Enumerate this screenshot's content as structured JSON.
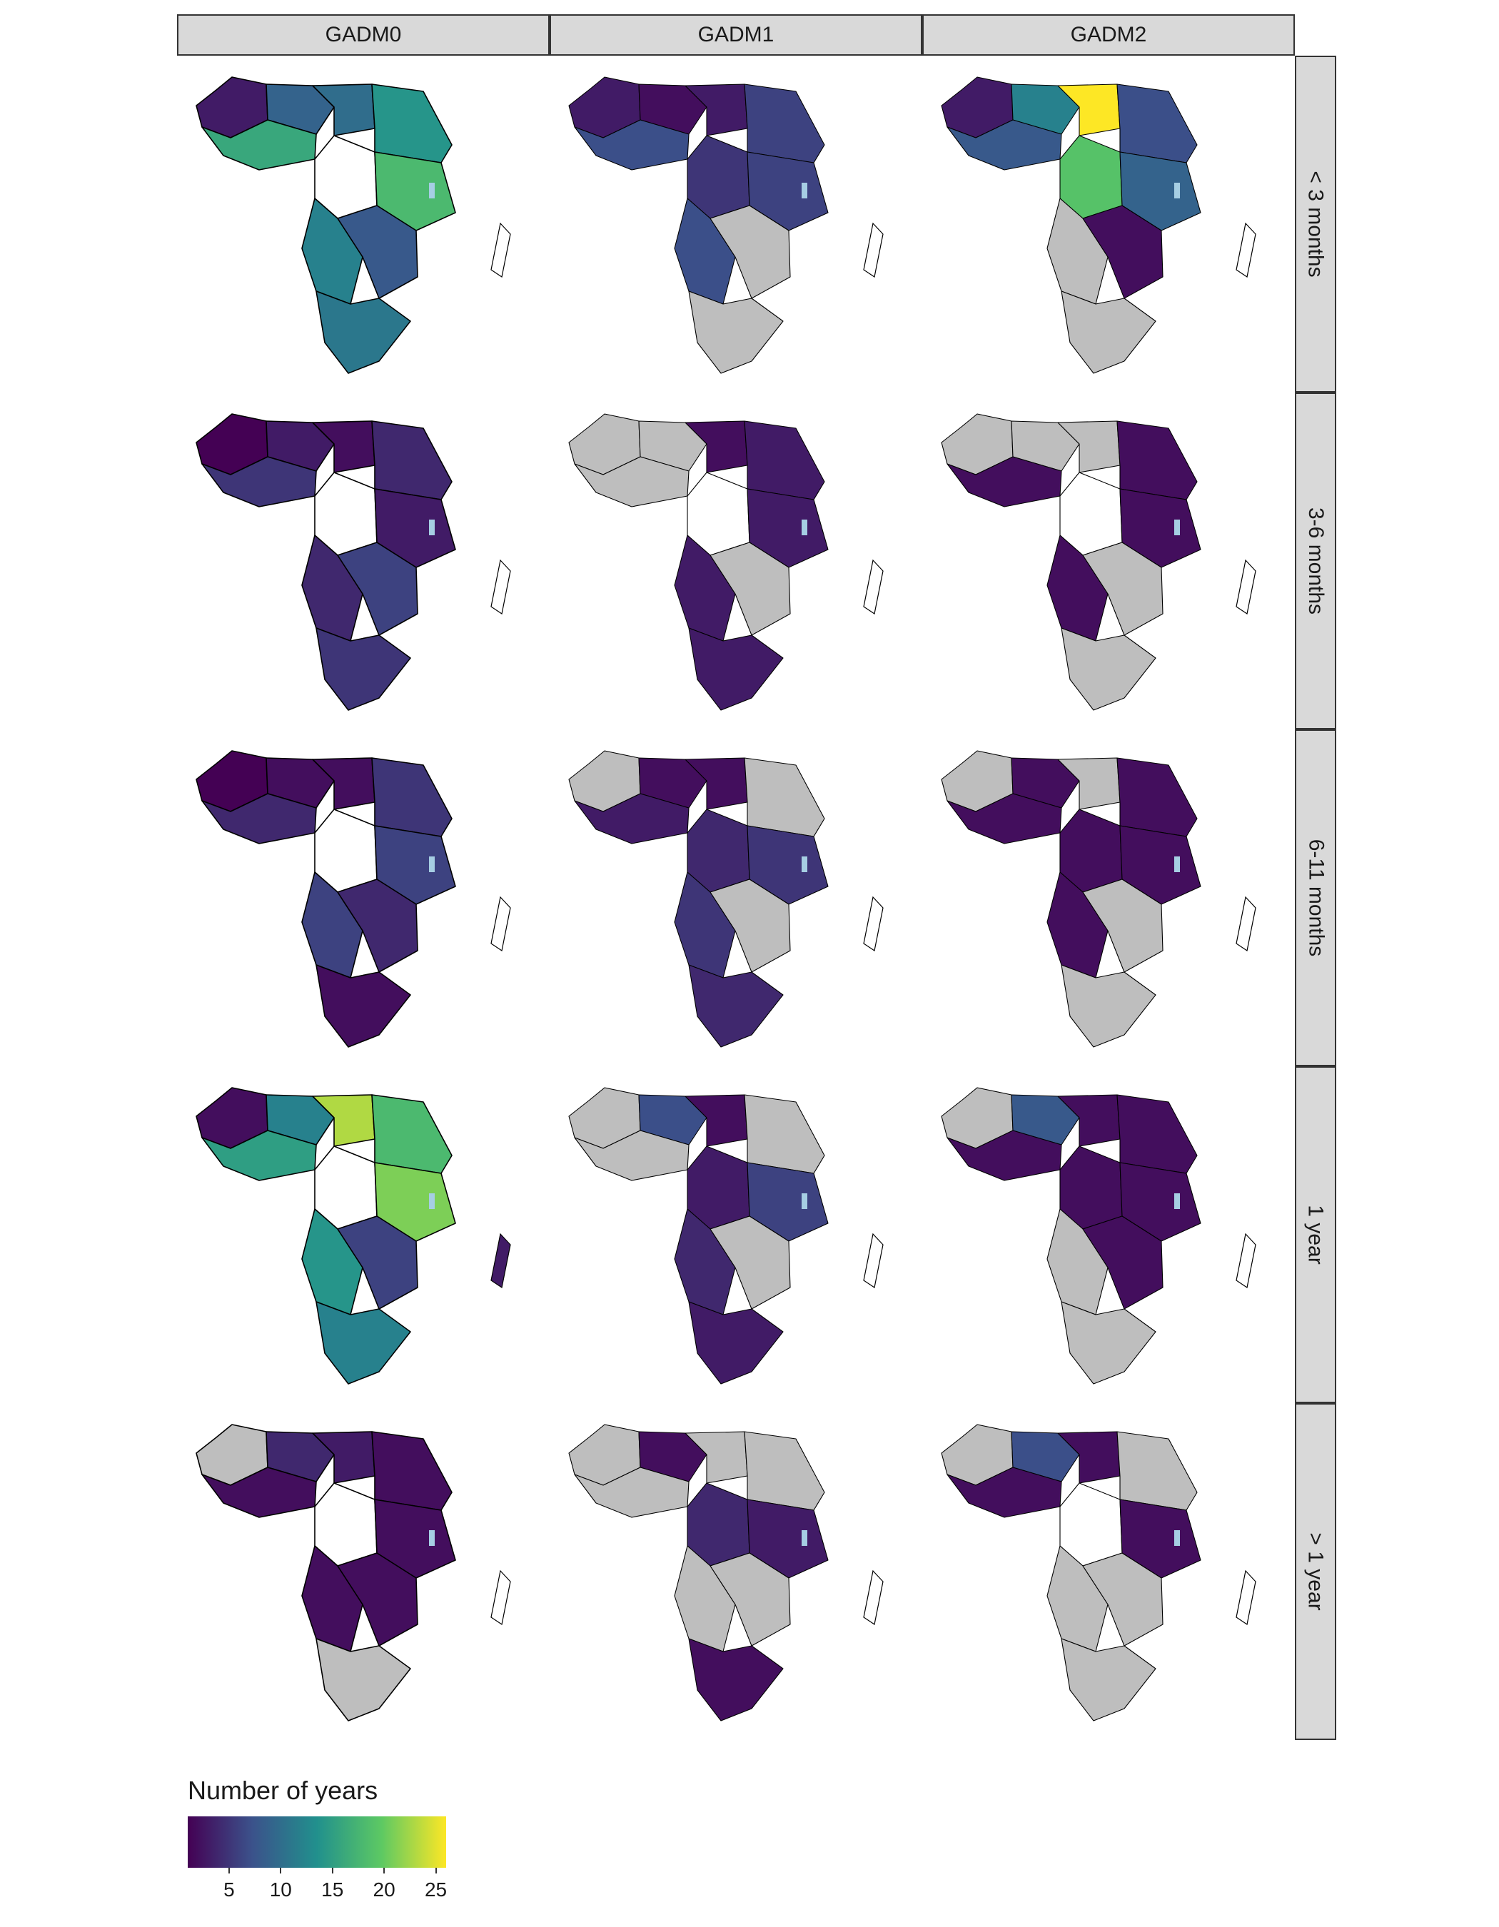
{
  "columns": [
    "GADM0",
    "GADM1",
    "GADM2"
  ],
  "rows": [
    "< 3 months",
    "3-6 months",
    "6-11 months",
    "1 year",
    "> 1 year"
  ],
  "legend": {
    "title": "Number of years",
    "ticks": [
      "5",
      "10",
      "15",
      "20",
      "25"
    ],
    "tick_values": [
      5,
      10,
      15,
      20,
      25
    ],
    "min": 1,
    "max": 26,
    "colormap": "viridis",
    "colors": [
      "#440154",
      "#3b528b",
      "#21908d",
      "#5dc963",
      "#fde725"
    ],
    "no_data_color": "#bebebe",
    "empty_color": "#ffffff",
    "water_color": "#a6cee3"
  },
  "panels": [
    {
      "row": 0,
      "col": 0,
      "regions": [
        [
          "west",
          3
        ],
        [
          "sahel_w",
          9
        ],
        [
          "sahel_e",
          10
        ],
        [
          "horn",
          14
        ],
        [
          "gulf",
          16
        ],
        [
          "central",
          null
        ],
        [
          "east",
          18
        ],
        [
          "southwest",
          12
        ],
        [
          "southeast",
          8
        ],
        [
          "south",
          11
        ]
      ]
    },
    {
      "row": 0,
      "col": 1,
      "regions": [
        [
          "west",
          3
        ],
        [
          "sahel_w",
          2
        ],
        [
          "sahel_e",
          3
        ],
        [
          "horn",
          6
        ],
        [
          "gulf",
          7
        ],
        [
          "central",
          5
        ],
        [
          "east",
          6
        ],
        [
          "southwest",
          7
        ],
        [
          "southeast",
          null
        ],
        [
          "south",
          null
        ]
      ]
    },
    {
      "row": 0,
      "col": 2,
      "regions": [
        [
          "west",
          3
        ],
        [
          "sahel_w",
          12
        ],
        [
          "sahel_e",
          26
        ],
        [
          "horn",
          7
        ],
        [
          "gulf",
          8
        ],
        [
          "central",
          19
        ],
        [
          "east",
          9
        ],
        [
          "southwest",
          null
        ],
        [
          "southeast",
          2
        ],
        [
          "south",
          null
        ]
      ]
    },
    {
      "row": 1,
      "col": 0,
      "regions": [
        [
          "west",
          1
        ],
        [
          "sahel_w",
          3
        ],
        [
          "sahel_e",
          2
        ],
        [
          "horn",
          4
        ],
        [
          "gulf",
          5
        ],
        [
          "central",
          null
        ],
        [
          "east",
          3
        ],
        [
          "southwest",
          4
        ],
        [
          "southeast",
          6
        ],
        [
          "south",
          5
        ]
      ]
    },
    {
      "row": 1,
      "col": 1,
      "regions": [
        [
          "west",
          null
        ],
        [
          "sahel_w",
          null
        ],
        [
          "sahel_e",
          2
        ],
        [
          "horn",
          3
        ],
        [
          "gulf",
          null
        ],
        [
          "central",
          null
        ],
        [
          "east",
          3
        ],
        [
          "southwest",
          3
        ],
        [
          "southeast",
          null
        ],
        [
          "south",
          3
        ]
      ]
    },
    {
      "row": 1,
      "col": 2,
      "regions": [
        [
          "west",
          null
        ],
        [
          "sahel_w",
          null
        ],
        [
          "sahel_e",
          null
        ],
        [
          "horn",
          2
        ],
        [
          "gulf",
          2
        ],
        [
          "central",
          null
        ],
        [
          "east",
          2
        ],
        [
          "southwest",
          2
        ],
        [
          "southeast",
          null
        ],
        [
          "south",
          null
        ]
      ]
    },
    {
      "row": 2,
      "col": 0,
      "regions": [
        [
          "west",
          1
        ],
        [
          "sahel_w",
          2
        ],
        [
          "sahel_e",
          2
        ],
        [
          "horn",
          5
        ],
        [
          "gulf",
          4
        ],
        [
          "central",
          null
        ],
        [
          "east",
          6
        ],
        [
          "southwest",
          6
        ],
        [
          "southeast",
          4
        ],
        [
          "south",
          2
        ]
      ]
    },
    {
      "row": 2,
      "col": 1,
      "regions": [
        [
          "west",
          null
        ],
        [
          "sahel_w",
          2
        ],
        [
          "sahel_e",
          2
        ],
        [
          "horn",
          null
        ],
        [
          "gulf",
          3
        ],
        [
          "central",
          4
        ],
        [
          "east",
          5
        ],
        [
          "southwest",
          5
        ],
        [
          "southeast",
          null
        ],
        [
          "south",
          4
        ]
      ]
    },
    {
      "row": 2,
      "col": 2,
      "regions": [
        [
          "west",
          null
        ],
        [
          "sahel_w",
          2
        ],
        [
          "sahel_e",
          null
        ],
        [
          "horn",
          2
        ],
        [
          "gulf",
          2
        ],
        [
          "central",
          2
        ],
        [
          "east",
          2
        ],
        [
          "southwest",
          2
        ],
        [
          "southeast",
          null
        ],
        [
          "south",
          null
        ]
      ]
    },
    {
      "row": 3,
      "col": 0,
      "regions": [
        [
          "west",
          2
        ],
        [
          "sahel_w",
          12
        ],
        [
          "sahel_e",
          23
        ],
        [
          "horn",
          18
        ],
        [
          "gulf",
          15
        ],
        [
          "central",
          null
        ],
        [
          "east",
          21
        ],
        [
          "southwest",
          14
        ],
        [
          "southeast",
          6
        ],
        [
          "south",
          12
        ]
      ]
    },
    {
      "row": 3,
      "col": 1,
      "regions": [
        [
          "west",
          null
        ],
        [
          "sahel_w",
          7
        ],
        [
          "sahel_e",
          2
        ],
        [
          "horn",
          null
        ],
        [
          "gulf",
          null
        ],
        [
          "central",
          3
        ],
        [
          "east",
          6
        ],
        [
          "southwest",
          4
        ],
        [
          "southeast",
          null
        ],
        [
          "south",
          3
        ]
      ]
    },
    {
      "row": 3,
      "col": 2,
      "regions": [
        [
          "west",
          null
        ],
        [
          "sahel_w",
          8
        ],
        [
          "sahel_e",
          2
        ],
        [
          "horn",
          2
        ],
        [
          "gulf",
          2
        ],
        [
          "central",
          2
        ],
        [
          "east",
          2
        ],
        [
          "southwest",
          null
        ],
        [
          "southeast",
          2
        ],
        [
          "south",
          null
        ]
      ]
    },
    {
      "row": 4,
      "col": 0,
      "regions": [
        [
          "west",
          null
        ],
        [
          "sahel_w",
          4
        ],
        [
          "sahel_e",
          3
        ],
        [
          "horn",
          2
        ],
        [
          "gulf",
          2
        ],
        [
          "central",
          null
        ],
        [
          "east",
          2
        ],
        [
          "southwest",
          2
        ],
        [
          "southeast",
          2
        ],
        [
          "south",
          null
        ]
      ]
    },
    {
      "row": 4,
      "col": 1,
      "regions": [
        [
          "west",
          null
        ],
        [
          "sahel_w",
          2
        ],
        [
          "sahel_e",
          null
        ],
        [
          "horn",
          null
        ],
        [
          "gulf",
          null
        ],
        [
          "central",
          4
        ],
        [
          "east",
          3
        ],
        [
          "southwest",
          null
        ],
        [
          "southeast",
          null
        ],
        [
          "south",
          2
        ]
      ]
    },
    {
      "row": 4,
      "col": 2,
      "regions": [
        [
          "west",
          null
        ],
        [
          "sahel_w",
          7
        ],
        [
          "sahel_e",
          2
        ],
        [
          "horn",
          null
        ],
        [
          "gulf",
          2
        ],
        [
          "central",
          null
        ],
        [
          "east",
          2
        ],
        [
          "southwest",
          null
        ],
        [
          "southeast",
          null
        ],
        [
          "south",
          null
        ]
      ]
    }
  ]
}
